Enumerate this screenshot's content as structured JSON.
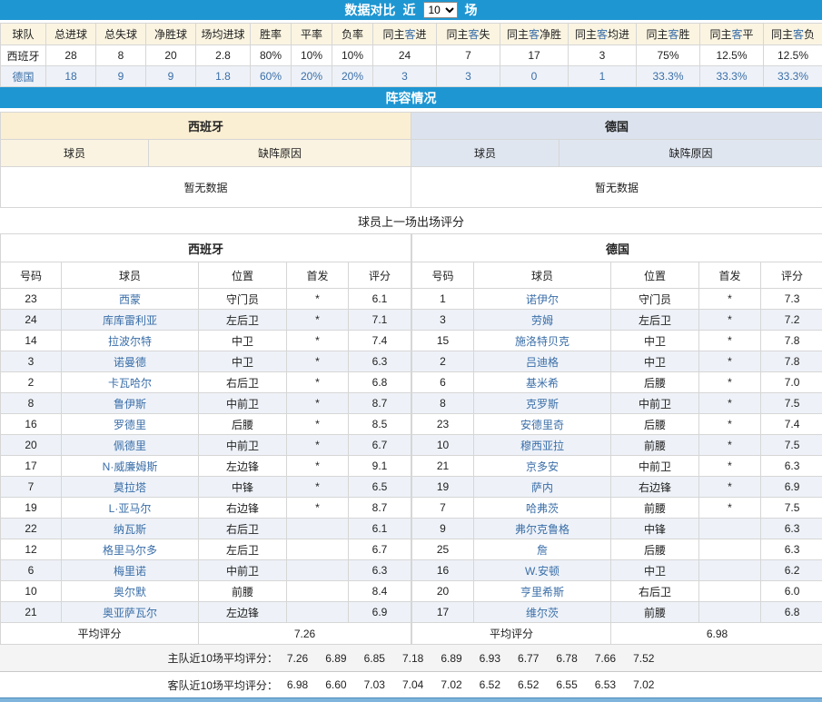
{
  "colors": {
    "banner_blue": "#1E96D2",
    "link_blue": "#3A6EA8",
    "home_header_bg": "#FBEFD3",
    "home_subheader_bg": "#FAF3E1",
    "away_header_bg": "#DCE3EE",
    "away_subheader_bg": "#DFE6F0",
    "alt_row_bg": "#EEF2F8",
    "compare_header_bg": "#FAF4E1",
    "summary_row_bg": "#F4F4F4",
    "bottom_bar_blue": "#7FB5DC"
  },
  "top_bar": {
    "title": "数据对比",
    "near_label": "近",
    "matches_value": "10",
    "unit_label": "场"
  },
  "compare": {
    "highlight_char": "客",
    "headers": [
      "球队",
      "总进球",
      "总失球",
      "净胜球",
      "场均进球",
      "胜率",
      "平率",
      "负率",
      "同主客进",
      "同主客失",
      "同主客净胜",
      "同主客均进",
      "同主客胜",
      "同主客平",
      "同主客负"
    ],
    "rows": [
      {
        "team": "西班牙",
        "values": [
          "28",
          "8",
          "20",
          "2.8",
          "80%",
          "10%",
          "10%",
          "24",
          "7",
          "17",
          "3",
          "75%",
          "12.5%",
          "12.5%"
        ]
      },
      {
        "team": "德国",
        "values": [
          "18",
          "9",
          "9",
          "1.8",
          "60%",
          "20%",
          "20%",
          "3",
          "3",
          "0",
          "1",
          "33.3%",
          "33.3%",
          "33.3%"
        ]
      }
    ]
  },
  "lineup": {
    "title": "阵容情况",
    "home_team": "西班牙",
    "away_team": "德国",
    "col_player": "球员",
    "col_reason": "缺阵原因",
    "empty_text": "暂无数据"
  },
  "ratings": {
    "title": "球员上一场出场评分",
    "columns": [
      "号码",
      "球员",
      "位置",
      "首发",
      "评分"
    ],
    "avg_label": "平均评分",
    "starter_mark": "*",
    "home": {
      "team": "西班牙",
      "avg": "7.26",
      "players": [
        {
          "num": "23",
          "name": "西蒙",
          "pos": "守门员",
          "start": "*",
          "rating": "6.1"
        },
        {
          "num": "24",
          "name": "库库雷利亚",
          "pos": "左后卫",
          "start": "*",
          "rating": "7.1"
        },
        {
          "num": "14",
          "name": "拉波尔特",
          "pos": "中卫",
          "start": "*",
          "rating": "7.4"
        },
        {
          "num": "3",
          "name": "诺曼德",
          "pos": "中卫",
          "start": "*",
          "rating": "6.3"
        },
        {
          "num": "2",
          "name": "卡瓦哈尔",
          "pos": "右后卫",
          "start": "*",
          "rating": "6.8"
        },
        {
          "num": "8",
          "name": "鲁伊斯",
          "pos": "中前卫",
          "start": "*",
          "rating": "8.7"
        },
        {
          "num": "16",
          "name": "罗德里",
          "pos": "后腰",
          "start": "*",
          "rating": "8.5"
        },
        {
          "num": "20",
          "name": "佩德里",
          "pos": "中前卫",
          "start": "*",
          "rating": "6.7"
        },
        {
          "num": "17",
          "name": "N·威廉姆斯",
          "pos": "左边锋",
          "start": "*",
          "rating": "9.1"
        },
        {
          "num": "7",
          "name": "莫拉塔",
          "pos": "中锋",
          "start": "*",
          "rating": "6.5"
        },
        {
          "num": "19",
          "name": "L·亚马尔",
          "pos": "右边锋",
          "start": "*",
          "rating": "8.7"
        },
        {
          "num": "22",
          "name": "纳瓦斯",
          "pos": "右后卫",
          "start": "",
          "rating": "6.1"
        },
        {
          "num": "12",
          "name": "格里马尔多",
          "pos": "左后卫",
          "start": "",
          "rating": "6.7"
        },
        {
          "num": "6",
          "name": "梅里诺",
          "pos": "中前卫",
          "start": "",
          "rating": "6.3"
        },
        {
          "num": "10",
          "name": "奥尔默",
          "pos": "前腰",
          "start": "",
          "rating": "8.4"
        },
        {
          "num": "21",
          "name": "奥亚萨瓦尔",
          "pos": "左边锋",
          "start": "",
          "rating": "6.9"
        }
      ]
    },
    "away": {
      "team": "德国",
      "avg": "6.98",
      "players": [
        {
          "num": "1",
          "name": "诺伊尔",
          "pos": "守门员",
          "start": "*",
          "rating": "7.3"
        },
        {
          "num": "3",
          "name": "劳姆",
          "pos": "左后卫",
          "start": "*",
          "rating": "7.2"
        },
        {
          "num": "15",
          "name": "施洛特贝克",
          "pos": "中卫",
          "start": "*",
          "rating": "7.8"
        },
        {
          "num": "2",
          "name": "吕迪格",
          "pos": "中卫",
          "start": "*",
          "rating": "7.8"
        },
        {
          "num": "6",
          "name": "基米希",
          "pos": "后腰",
          "start": "*",
          "rating": "7.0"
        },
        {
          "num": "8",
          "name": "克罗斯",
          "pos": "中前卫",
          "start": "*",
          "rating": "7.5"
        },
        {
          "num": "23",
          "name": "安德里奇",
          "pos": "后腰",
          "start": "*",
          "rating": "7.4"
        },
        {
          "num": "10",
          "name": "穆西亚拉",
          "pos": "前腰",
          "start": "*",
          "rating": "7.5"
        },
        {
          "num": "21",
          "name": "京多安",
          "pos": "中前卫",
          "start": "*",
          "rating": "6.3"
        },
        {
          "num": "19",
          "name": "萨内",
          "pos": "右边锋",
          "start": "*",
          "rating": "6.9"
        },
        {
          "num": "7",
          "name": "哈弗茨",
          "pos": "前腰",
          "start": "*",
          "rating": "7.5"
        },
        {
          "num": "9",
          "name": "弗尔克鲁格",
          "pos": "中锋",
          "start": "",
          "rating": "6.3"
        },
        {
          "num": "25",
          "name": "詹",
          "pos": "后腰",
          "start": "",
          "rating": "6.3"
        },
        {
          "num": "16",
          "name": "W.安顿",
          "pos": "中卫",
          "start": "",
          "rating": "6.2"
        },
        {
          "num": "20",
          "name": "亨里希斯",
          "pos": "右后卫",
          "start": "",
          "rating": "6.0"
        },
        {
          "num": "17",
          "name": "维尔茨",
          "pos": "前腰",
          "start": "",
          "rating": "6.8"
        }
      ]
    }
  },
  "summary": {
    "home_label": "主队近10场平均评分：",
    "home_values": [
      "7.26",
      "6.89",
      "6.85",
      "7.18",
      "6.89",
      "6.93",
      "6.77",
      "6.78",
      "7.66",
      "7.52"
    ],
    "away_label": "客队近10场平均评分：",
    "away_values": [
      "6.98",
      "6.60",
      "7.03",
      "7.04",
      "7.02",
      "6.52",
      "6.52",
      "6.55",
      "6.53",
      "7.02"
    ]
  }
}
